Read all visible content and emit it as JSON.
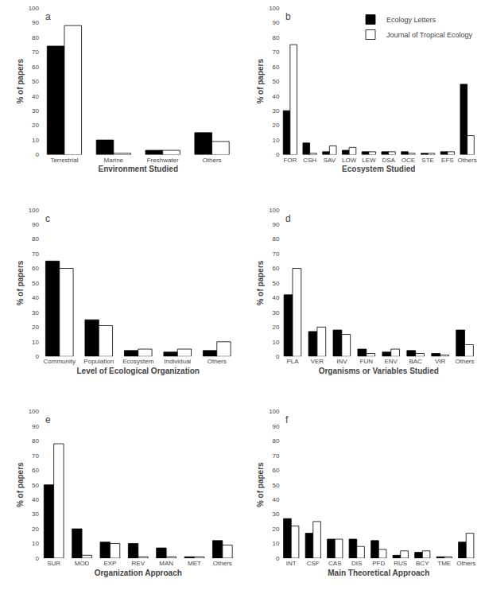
{
  "chart_data": [
    {
      "type": "bar",
      "title": "a",
      "xlabel": "Environment Studied",
      "ylabel": "% of papers",
      "categories": [
        "Terrestrial",
        "Marine",
        "Freshwater",
        "Others"
      ],
      "series": [
        {
          "name": "Ecology Letters",
          "color": "#000000",
          "values": [
            74,
            10,
            3,
            15
          ]
        },
        {
          "name": "Journal of Tropical Ecology",
          "color": "#ffffff",
          "values": [
            88,
            1,
            3,
            9
          ]
        }
      ],
      "ylim": [
        0,
        100
      ],
      "yticks": [
        0,
        10,
        20,
        30,
        40,
        50,
        60,
        70,
        80,
        90,
        100
      ],
      "grid": false
    },
    {
      "type": "bar",
      "title": "b",
      "xlabel": "Ecosystem Studied",
      "ylabel": "% of papers",
      "categories": [
        "FOR",
        "CSH",
        "SAV",
        "LOW",
        "LEW",
        "DSA",
        "OCE",
        "STE",
        "EFS",
        "Others"
      ],
      "series": [
        {
          "name": "Ecology Letters",
          "color": "#000000",
          "values": [
            30,
            8,
            2,
            3,
            2,
            2,
            2,
            1,
            2,
            48
          ]
        },
        {
          "name": "Journal of Tropical Ecology",
          "color": "#ffffff",
          "values": [
            75,
            1,
            6,
            5,
            2,
            2,
            1,
            1,
            2,
            13
          ]
        }
      ],
      "ylim": [
        0,
        100
      ],
      "yticks": [
        0,
        10,
        20,
        30,
        40,
        50,
        60,
        70,
        80,
        90,
        100
      ],
      "grid": false,
      "legend": "upper right"
    },
    {
      "type": "bar",
      "title": "c",
      "xlabel": "Level of Ecological Organization",
      "ylabel": "% of papers",
      "categories": [
        "Community",
        "Population",
        "Ecosystem",
        "Individual",
        "Others"
      ],
      "series": [
        {
          "name": "Ecology Letters",
          "color": "#000000",
          "values": [
            65,
            25,
            4,
            3,
            4
          ]
        },
        {
          "name": "Journal of Tropical Ecology",
          "color": "#ffffff",
          "values": [
            60,
            21,
            5,
            5,
            10
          ]
        }
      ],
      "ylim": [
        0,
        100
      ],
      "yticks": [
        0,
        10,
        20,
        30,
        40,
        50,
        60,
        70,
        80,
        90,
        100
      ],
      "grid": false
    },
    {
      "type": "bar",
      "title": "d",
      "xlabel": "Organisms or Variables Studied",
      "ylabel": "% of papers",
      "categories": [
        "PLA",
        "VER",
        "INV",
        "FUN",
        "ENV",
        "BAC",
        "VIR",
        "Others"
      ],
      "series": [
        {
          "name": "Ecology Letters",
          "color": "#000000",
          "values": [
            42,
            17,
            18,
            5,
            3,
            4,
            2,
            18
          ]
        },
        {
          "name": "Journal of Tropical Ecology",
          "color": "#ffffff",
          "values": [
            60,
            20,
            15,
            2,
            5,
            2,
            1,
            8
          ]
        }
      ],
      "ylim": [
        0,
        100
      ],
      "yticks": [
        0,
        10,
        20,
        30,
        40,
        50,
        60,
        70,
        80,
        90,
        100
      ],
      "grid": false
    },
    {
      "type": "bar",
      "title": "e",
      "xlabel": "Organization Approach",
      "ylabel": "% of papers",
      "categories": [
        "SUR",
        "MOD",
        "EXP",
        "REV",
        "MAN",
        "MET",
        "Others"
      ],
      "series": [
        {
          "name": "Ecology Letters",
          "color": "#000000",
          "values": [
            50,
            20,
            11,
            10,
            7,
            1,
            12
          ]
        },
        {
          "name": "Journal of Tropical Ecology",
          "color": "#ffffff",
          "values": [
            78,
            2,
            10,
            1,
            1,
            1,
            9
          ]
        }
      ],
      "ylim": [
        0,
        100
      ],
      "yticks": [
        0,
        10,
        20,
        30,
        40,
        50,
        60,
        70,
        80,
        90,
        100
      ],
      "grid": false
    },
    {
      "type": "bar",
      "title": "f",
      "xlabel": "Main Theoretical Approach",
      "ylabel": "% of papers",
      "categories": [
        "INT",
        "CSF",
        "CAS",
        "DIS",
        "PFD",
        "RUS",
        "BCY",
        "TME",
        "Others"
      ],
      "series": [
        {
          "name": "Ecology Letters",
          "color": "#000000",
          "values": [
            27,
            17,
            13,
            13,
            12,
            2,
            4,
            1,
            11
          ]
        },
        {
          "name": "Journal of Tropical Ecology",
          "color": "#ffffff",
          "values": [
            22,
            25,
            13,
            8,
            6,
            5,
            5,
            1,
            17
          ]
        }
      ],
      "ylim": [
        0,
        100
      ],
      "yticks": [
        0,
        10,
        20,
        30,
        40,
        50,
        60,
        70,
        80,
        90,
        100
      ],
      "grid": false
    }
  ]
}
